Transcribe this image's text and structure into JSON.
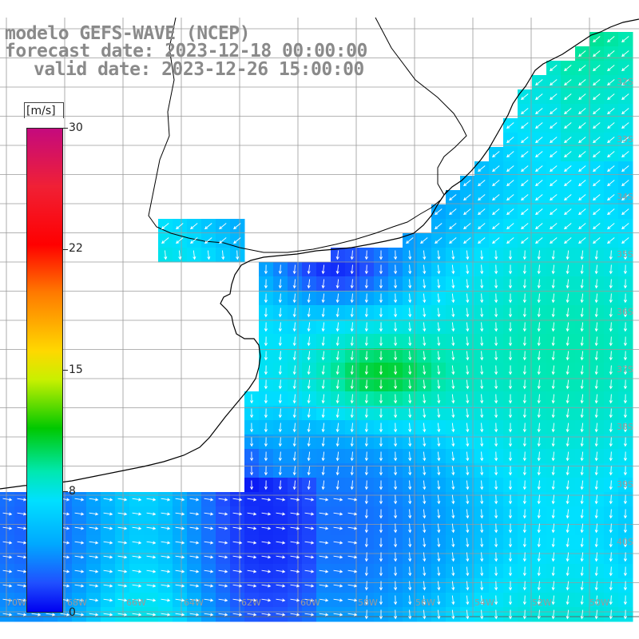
{
  "title": {
    "line1": "modelo GEFS-WAVE (NCEP)",
    "line2": "forecast date: 2023-12-18 00:00:00",
    "line3": "valid date: 2023-12-26 15:00:00"
  },
  "colorbar": {
    "unit": "[m/s]",
    "ticks": [
      "30",
      "22",
      "15",
      "8",
      "0"
    ],
    "tick_values": [
      30,
      22,
      15,
      8,
      0
    ],
    "range": [
      0,
      30
    ],
    "colors": [
      "#0000f0",
      "#2050ff",
      "#00a8ff",
      "#00e0ff",
      "#00e8b0",
      "#00c800",
      "#c8f000",
      "#ffd800",
      "#ff7a00",
      "#ff0000",
      "#f02035",
      "#c40a7e"
    ]
  },
  "map": {
    "variable": "wind speed and direction",
    "land_color": "#ffffff",
    "grid_color": "#9a9a9a",
    "coast_color": "#000000",
    "right_axis_labels": [
      "32S",
      "33S",
      "34S",
      "35S",
      "36S",
      "37S",
      "38S",
      "39S",
      "40S"
    ],
    "bottom_axis_labels": [
      "70W",
      "68W",
      "66W",
      "64W",
      "62W",
      "60W",
      "58W",
      "56W",
      "54W",
      "52W",
      "50W"
    ]
  }
}
